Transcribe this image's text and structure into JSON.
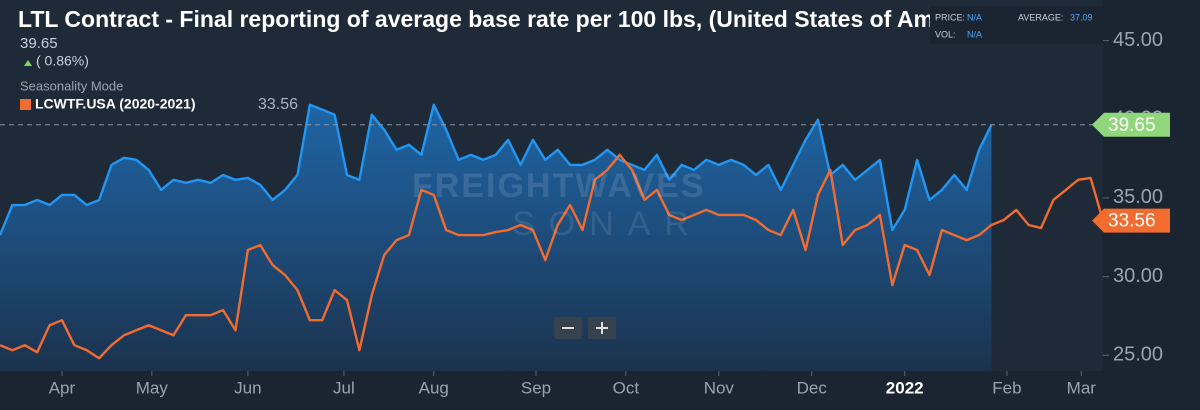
{
  "header": {
    "title": "LTL Contract - Final reporting of average base rate per 100 lbs, (United States of Am",
    "change": "( 0.86%)",
    "mode": "Seasonality Mode"
  },
  "stats": {
    "price_label": "PRICE:",
    "price": "N/A",
    "vol_label": "VOL:",
    "vol": "N/A",
    "average_label": "AVERAGE:",
    "average": "37.09"
  },
  "watermark": [
    "FREIGHTWAVES",
    "SONAR"
  ],
  "chart_data": {
    "type": "line",
    "x": [
      0,
      4,
      8,
      12,
      16,
      20,
      24,
      28,
      32,
      36,
      40,
      44,
      48,
      52,
      56,
      60,
      64,
      68,
      72,
      76,
      80,
      84,
      88,
      92,
      96,
      100,
      104,
      108,
      112,
      116,
      120,
      124,
      128,
      132,
      136,
      140,
      144,
      148,
      152,
      156,
      160,
      164,
      168,
      172,
      176,
      180,
      184,
      188,
      192,
      196,
      200,
      204,
      208,
      212,
      216,
      220,
      224,
      228,
      232,
      236,
      240,
      244,
      248,
      252,
      256,
      260,
      264,
      268,
      272,
      276,
      280,
      284,
      288,
      292,
      296,
      300,
      304,
      308,
      312,
      316,
      320,
      324,
      328,
      332,
      336,
      340,
      344,
      348,
      352,
      356
    ],
    "xlim": [
      0,
      356
    ],
    "xticks": [
      {
        "value": 20,
        "label": "Apr"
      },
      {
        "value": 49,
        "label": "May"
      },
      {
        "value": 80,
        "label": "Jun"
      },
      {
        "value": 111,
        "label": "Jul"
      },
      {
        "value": 140,
        "label": "Aug"
      },
      {
        "value": 173,
        "label": "Sep"
      },
      {
        "value": 202,
        "label": "Oct"
      },
      {
        "value": 232,
        "label": "Nov"
      },
      {
        "value": 262,
        "label": "Dec"
      },
      {
        "value": 292,
        "label": "2022"
      },
      {
        "value": 325,
        "label": "Feb"
      },
      {
        "value": 349,
        "label": "Mar"
      }
    ],
    "ylim": [
      24,
      46.5
    ],
    "yticks": [
      {
        "value": 25,
        "label": "25.00"
      },
      {
        "value": 30,
        "label": "30.00"
      },
      {
        "value": 35,
        "label": "35.00"
      },
      {
        "value": 40,
        "label": "40.00"
      },
      {
        "value": 45,
        "label": "45.00"
      }
    ],
    "grid": false,
    "series": [
      {
        "color": "#2196f3",
        "values": [
          32.64,
          34.55,
          34.55,
          34.87,
          34.55,
          35.19,
          35.19,
          34.55,
          34.87,
          37.1,
          37.55,
          37.42,
          36.78,
          35.51,
          36.15,
          35.96,
          36.15,
          35.96,
          36.46,
          36.15,
          36.27,
          35.83,
          34.87,
          35.51,
          36.46,
          40.92,
          40.61,
          40.29,
          36.46,
          36.15,
          40.29,
          39.33,
          38.06,
          38.38,
          37.74,
          40.92,
          39.33,
          37.42,
          37.74,
          37.42,
          37.74,
          38.69,
          37.1,
          38.69,
          37.42,
          38.06,
          37.1,
          37.1,
          37.42,
          38.06,
          37.42,
          37.1,
          36.78,
          37.74,
          36.15,
          37.1,
          36.78,
          37.42,
          37.1,
          37.42,
          37.1,
          36.46,
          37.1,
          35.51,
          37.1,
          38.69,
          39.97,
          36.46,
          37.1,
          36.15,
          36.78,
          37.42,
          32.96,
          34.24,
          37.42,
          34.87,
          35.51,
          36.46,
          35.51,
          38.06,
          39.65,
          null,
          null,
          null,
          null,
          null,
          null,
          null,
          null,
          null
        ]
      },
      {
        "name": "LCWTF.USA (2020-2021)",
        "color": "#f26b2f",
        "values": [
          25.64,
          25.32,
          25.64,
          25.19,
          26.91,
          27.23,
          25.64,
          25.32,
          24.81,
          25.64,
          26.27,
          26.59,
          26.91,
          26.59,
          26.27,
          27.55,
          27.55,
          27.55,
          27.87,
          26.59,
          31.69,
          32.01,
          30.73,
          30.1,
          29.14,
          27.23,
          27.23,
          29.14,
          28.5,
          25.32,
          28.82,
          31.37,
          32.32,
          32.64,
          35.51,
          35.19,
          32.96,
          32.64,
          32.64,
          32.64,
          32.83,
          32.96,
          33.28,
          32.96,
          31.05,
          33.28,
          34.55,
          32.96,
          36.15,
          36.78,
          37.74,
          36.78,
          34.87,
          35.51,
          33.92,
          33.6,
          33.92,
          34.24,
          33.92,
          33.92,
          33.92,
          33.6,
          32.96,
          32.64,
          34.24,
          31.69,
          35.19,
          36.78,
          32.01,
          32.96,
          33.28,
          33.92,
          29.46,
          32.01,
          31.69,
          30.1,
          32.96,
          32.64,
          32.32,
          32.64,
          33.28,
          33.6,
          34.24,
          33.28,
          33.09,
          34.87,
          35.51,
          36.15,
          36.27,
          33.56
        ]
      }
    ]
  }
}
